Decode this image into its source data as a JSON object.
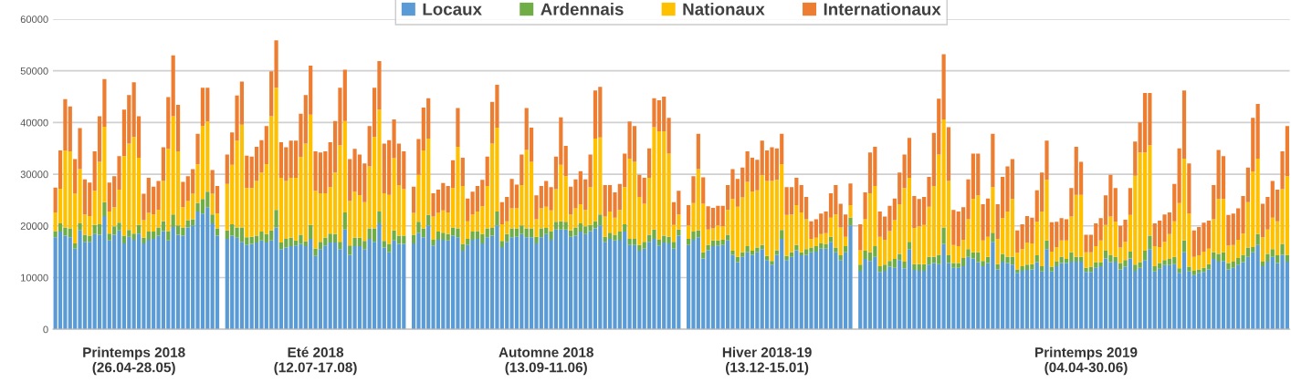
{
  "chart_data": {
    "type": "bar",
    "stacked": true,
    "grid": "y",
    "legend": "top",
    "ylim": [
      0,
      60000
    ],
    "yticks": [
      0,
      10000,
      20000,
      30000,
      40000,
      50000,
      60000
    ],
    "categories": [
      null,
      null,
      null,
      null,
      null,
      null,
      null,
      null,
      null,
      null,
      null,
      null,
      null,
      null,
      null,
      null,
      "Printemps 2018\n(26.04-28.05)",
      null,
      null,
      null,
      null,
      null,
      null,
      null,
      null,
      null,
      null,
      null,
      null,
      null,
      null,
      null,
      null,
      null,
      null,
      null,
      null,
      null,
      null,
      null,
      null,
      null,
      null,
      null,
      null,
      null,
      null,
      null,
      null,
      null,
      null,
      null,
      null,
      "Eté 2018\n(12.07-17.08)",
      null,
      null,
      null,
      null,
      null,
      null,
      null,
      null,
      null,
      null,
      null,
      null,
      null,
      null,
      null,
      null,
      null,
      null,
      null,
      null,
      null,
      null,
      null,
      null,
      null,
      null,
      null,
      null,
      null,
      null,
      null,
      null,
      null,
      null,
      null,
      null,
      null,
      null,
      null,
      null,
      null,
      null,
      null,
      null,
      null,
      null,
      "Automne 2018\n(13.09-11.06)",
      null,
      null,
      null,
      null,
      null,
      null,
      null,
      null,
      null,
      null,
      null,
      null,
      null,
      null,
      null,
      null,
      null,
      null,
      null,
      null,
      null,
      null,
      null,
      null,
      null,
      null,
      null,
      null,
      null,
      null,
      null,
      null,
      null,
      null,
      null,
      null,
      null,
      null,
      null,
      null,
      null,
      null,
      null,
      null,
      "Hiver 2018-19\n(13.12-15.01)",
      null,
      null,
      null,
      null,
      null,
      null,
      null,
      null,
      null,
      null,
      null,
      null,
      null,
      null,
      null,
      null,
      null,
      null,
      null,
      null,
      null,
      null,
      null,
      null,
      null,
      null,
      null,
      null,
      null,
      null,
      null,
      null,
      null,
      null,
      null,
      null,
      null,
      null,
      null,
      null,
      null,
      null,
      null,
      null,
      null,
      null,
      null,
      null,
      null,
      null,
      null,
      null,
      null,
      null,
      null,
      null,
      null,
      null,
      null,
      null,
      null,
      null,
      null,
      null,
      "Printemps 2019\n(04.04-30.06)",
      null,
      null,
      null,
      null,
      null,
      null,
      null,
      null,
      null,
      null,
      null,
      null,
      null,
      null,
      null,
      null,
      null,
      null,
      null,
      null,
      null,
      null,
      null,
      null,
      null,
      null,
      null,
      null,
      null,
      null,
      null,
      null,
      null,
      null,
      null,
      null,
      null,
      null,
      null,
      null,
      null
    ],
    "series": [
      {
        "name": "Locaux",
        "color": "#5b9bd5",
        "values": [
          17800,
          18900,
          18100,
          17800,
          15600,
          19100,
          16900,
          16900,
          18400,
          18300,
          21900,
          17200,
          18300,
          19100,
          16600,
          17900,
          17300,
          18500,
          16600,
          17300,
          17500,
          18100,
          19000,
          17200,
          19800,
          18300,
          18100,
          19700,
          20100,
          22800,
          22400,
          23600,
          20500,
          18100,
          null,
          17500,
          18100,
          17700,
          16900,
          16300,
          16500,
          16800,
          17200,
          16800,
          17200,
          19700,
          15500,
          15800,
          16100,
          16200,
          16500,
          16100,
          17500,
          14200,
          15500,
          16200,
          16800,
          16800,
          15500,
          19300,
          14400,
          16100,
          16100,
          15500,
          17500,
          16900,
          20500,
          15800,
          14900,
          17200,
          16500,
          16500,
          null,
          16600,
          18700,
          17800,
          20100,
          16200,
          17300,
          17300,
          17200,
          18100,
          17800,
          15200,
          16300,
          17300,
          17500,
          16600,
          17800,
          18100,
          20100,
          15900,
          16900,
          17800,
          17900,
          18400,
          17800,
          17800,
          16600,
          17800,
          18400,
          17300,
          19300,
          19300,
          19300,
          17900,
          18100,
          18900,
          18400,
          19000,
          19500,
          20100,
          16900,
          17500,
          17200,
          17300,
          18900,
          16300,
          16300,
          15200,
          15600,
          16900,
          17500,
          16200,
          16800,
          16600,
          15600,
          18100,
          null,
          16300,
          17300,
          17800,
          13700,
          15300,
          16100,
          16200,
          16300,
          17200,
          14400,
          13000,
          14000,
          14900,
          14400,
          14900,
          15500,
          13400,
          12500,
          14400,
          17500,
          13400,
          14000,
          15300,
          14300,
          14400,
          14900,
          15000,
          15600,
          15600,
          16900,
          14900,
          13400,
          14900,
          20100,
          null,
          11300,
          13600,
          13200,
          14000,
          11100,
          11300,
          12100,
          11900,
          13400,
          11800,
          15500,
          11500,
          11300,
          11300,
          12500,
          12800,
          12600,
          16500,
          12800,
          11900,
          11900,
          12200,
          14000,
          13700,
          13000,
          12200,
          12800,
          16900,
          11600,
          13100,
          12800,
          12500,
          10900,
          11300,
          11500,
          11600,
          13000,
          11200,
          15500,
          11200,
          12200,
          12800,
          12800,
          13100,
          13100,
          13100,
          11100,
          11100,
          11900,
          12200,
          13700,
          13000,
          13100,
          11600,
          12100,
          13700,
          11300,
          11900,
          13400,
          15500,
          11200,
          11700,
          12400,
          12400,
          12600,
          10900,
          14900,
          11200,
          10500,
          10900,
          11100,
          11600,
          13600,
          13100,
          13200,
          11600,
          11900,
          12500,
          13000,
          14000,
          14900,
          16300,
          12200,
          13100,
          14000,
          12800,
          14400,
          13100
        ]
      },
      {
        "name": "Ardennais",
        "color": "#70ad47",
        "values": [
          1200,
          1600,
          1600,
          1700,
          1000,
          1400,
          1400,
          1200,
          1800,
          2000,
          2700,
          1300,
          1600,
          1500,
          1500,
          1300,
          1200,
          1700,
          1100,
          1600,
          1400,
          1600,
          1900,
          1800,
          2400,
          1800,
          1600,
          1400,
          1200,
          1600,
          2800,
          3000,
          1700,
          1400,
          null,
          1600,
          2200,
          2000,
          2800,
          1500,
          1400,
          1300,
          1700,
          1600,
          1900,
          3400,
          1300,
          1700,
          1600,
          1000,
          1800,
          900,
          2700,
          1400,
          1400,
          1500,
          1700,
          1600,
          1400,
          3300,
          1800,
          1600,
          1600,
          1600,
          2000,
          2600,
          2300,
          1300,
          1600,
          1900,
          1600,
          1600,
          null,
          1700,
          2100,
          1700,
          2000,
          1100,
          1600,
          1400,
          1200,
          1600,
          1700,
          1300,
          1200,
          1600,
          1500,
          1800,
          1700,
          1500,
          2700,
          1200,
          1500,
          1700,
          1600,
          1700,
          1700,
          1700,
          1300,
          1700,
          1200,
          1700,
          1500,
          1600,
          1500,
          1200,
          1600,
          1600,
          1500,
          1200,
          1400,
          2100,
          1000,
          1200,
          1100,
          1600,
          1400,
          1200,
          1200,
          1100,
          1300,
          1400,
          1800,
          1100,
          1300,
          1300,
          1300,
          1200,
          null,
          1200,
          1600,
          1300,
          1200,
          1000,
          1100,
          1000,
          1000,
          1100,
          800,
          1000,
          900,
          1200,
          800,
          900,
          800,
          800,
          700,
          900,
          1700,
          800,
          900,
          1000,
          600,
          1100,
          900,
          1100,
          1000,
          900,
          1000,
          900,
          900,
          1200,
          1500,
          null,
          1200,
          1600,
          1700,
          2100,
          1100,
          1200,
          1100,
          1700,
          1200,
          1300,
          1400,
          1100,
          1300,
          1300,
          1500,
          1200,
          1800,
          3200,
          1500,
          900,
          900,
          1600,
          1500,
          1200,
          1900,
          1000,
          1200,
          1800,
          1000,
          1500,
          1200,
          1500,
          700,
          900,
          1000,
          1000,
          1300,
          1000,
          1700,
          900,
          900,
          1200,
          800,
          1800,
          900,
          900,
          800,
          1000,
          1100,
          800,
          1500,
          1400,
          900,
          1200,
          1300,
          1300,
          1200,
          1100,
          1800,
          2600,
          1000,
          1100,
          1000,
          1200,
          1400,
          900,
          2300,
          900,
          800,
          700,
          800,
          1000,
          1300,
          1500,
          1700,
          1200,
          1200,
          1300,
          1400,
          1800,
          1000,
          2100,
          900,
          1500,
          1500,
          1500,
          2100,
          1300
        ]
      },
      {
        "name": "Nationaux",
        "color": "#ffc000",
        "values": [
          3600,
          6700,
          14900,
          14900,
          9600,
          10500,
          3900,
          3800,
          6600,
          12100,
          14600,
          4300,
          3700,
          6400,
          15400,
          16700,
          18700,
          13000,
          3400,
          3600,
          3300,
          3400,
          7800,
          15900,
          19000,
          14300,
          3900,
          3700,
          4900,
          7500,
          14100,
          13600,
          4000,
          2900,
          null,
          9000,
          11500,
          16800,
          19900,
          9500,
          9400,
          10600,
          11400,
          13500,
          22100,
          23600,
          12500,
          11200,
          11600,
          12100,
          15000,
          18900,
          21300,
          11200,
          9400,
          8600,
          9000,
          11900,
          18700,
          17700,
          8600,
          8900,
          8200,
          7500,
          12000,
          17700,
          19700,
          9200,
          9500,
          14000,
          9800,
          9000,
          null,
          4200,
          9100,
          15100,
          14800,
          4500,
          3600,
          4300,
          4200,
          7600,
          15800,
          11200,
          3400,
          3300,
          3800,
          5400,
          8200,
          16300,
          16200,
          3200,
          2500,
          3900,
          3900,
          7800,
          15200,
          12900,
          3400,
          3900,
          4100,
          4000,
          6300,
          10900,
          8800,
          3100,
          3700,
          3700,
          3200,
          7300,
          16000,
          14900,
          3900,
          4100,
          3300,
          4200,
          7200,
          15500,
          14900,
          9300,
          7400,
          11000,
          19800,
          21000,
          20200,
          16100,
          3300,
          2900,
          null,
          2600,
          5500,
          11900,
          9400,
          3000,
          2300,
          2900,
          2600,
          4800,
          10000,
          9700,
          10600,
          12400,
          11400,
          11100,
          13500,
          14500,
          15500,
          13600,
          12700,
          7900,
          7300,
          7700,
          7700,
          5800,
          1700,
          1600,
          1800,
          2100,
          3700,
          6400,
          5400,
          1800,
          2400,
          null,
          2800,
          6100,
          11400,
          11600,
          5700,
          4800,
          5800,
          7500,
          9600,
          14200,
          12400,
          7000,
          7300,
          7600,
          9700,
          13700,
          19400,
          20900,
          14400,
          3500,
          3300,
          3500,
          5800,
          10300,
          11000,
          4000,
          3900,
          8800,
          4900,
          6900,
          8800,
          11200,
          3200,
          3300,
          4300,
          4000,
          6500,
          10600,
          11700,
          2900,
          2800,
          3200,
          3600,
          6900,
          12000,
          12000,
          3000,
          2800,
          3100,
          4200,
          5000,
          7400,
          6800,
          3000,
          3500,
          7100,
          17200,
          21200,
          19000,
          17500,
          3900,
          3100,
          3500,
          4800,
          6900,
          12600,
          15800,
          10300,
          2700,
          2700,
          3100,
          3000,
          6400,
          10600,
          10300,
          3400,
          3200,
          3500,
          4100,
          8800,
          14600,
          14600,
          4700,
          4700,
          6100,
          6600,
          10600,
          15200
        ]
      },
      {
        "name": "Internationaux",
        "color": "#ed7d31",
        "values": [
          4800,
          7400,
          9900,
          8700,
          6700,
          7900,
          6800,
          6500,
          7600,
          8800,
          9200,
          5600,
          6000,
          6500,
          9000,
          9400,
          10600,
          8000,
          5100,
          6800,
          5400,
          5600,
          6500,
          10000,
          11800,
          9000,
          4900,
          4800,
          4800,
          5900,
          7400,
          6500,
          4600,
          5300,
          null,
          5700,
          6300,
          8700,
          8300,
          6300,
          6100,
          6600,
          6300,
          7400,
          8700,
          9200,
          6900,
          6500,
          7200,
          7200,
          8400,
          9400,
          9500,
          7600,
          7900,
          8100,
          8700,
          10000,
          11100,
          9900,
          8100,
          8300,
          7900,
          7500,
          7800,
          9500,
          9400,
          9600,
          10600,
          7500,
          8000,
          7300,
          null,
          5100,
          6900,
          8300,
          7800,
          4500,
          4500,
          5300,
          5100,
          5400,
          7500,
          5500,
          4400,
          4400,
          4900,
          5100,
          5700,
          8100,
          8300,
          4300,
          4700,
          5700,
          4600,
          5900,
          8100,
          6600,
          4600,
          4300,
          5000,
          4500,
          6300,
          9200,
          5900,
          5400,
          5600,
          6400,
          5900,
          6300,
          9300,
          9800,
          6100,
          5100,
          4900,
          5000,
          6500,
          7200,
          6900,
          4300,
          5000,
          5700,
          5600,
          6000,
          6700,
          6900,
          4400,
          4600,
          null,
          3900,
          5200,
          6800,
          5100,
          4500,
          4000,
          3800,
          4000,
          4800,
          5800,
          5400,
          5800,
          5900,
          6600,
          5900,
          6700,
          5900,
          6500,
          6100,
          5900,
          5400,
          5300,
          5300,
          5300,
          4300,
          3400,
          3600,
          4000,
          4200,
          4700,
          5700,
          4600,
          4300,
          4200,
          null,
          5000,
          5200,
          7900,
          7600,
          4900,
          4500,
          4900,
          4200,
          6100,
          6500,
          7700,
          6200,
          5300,
          5400,
          5800,
          10300,
          10800,
          12600,
          10400,
          6800,
          6700,
          6300,
          7700,
          8800,
          8100,
          7000,
          7400,
          10300,
          6700,
          8000,
          8700,
          7700,
          4300,
          4800,
          5100,
          5000,
          6100,
          7500,
          7600,
          5700,
          4900,
          4300,
          4100,
          5500,
          9300,
          6400,
          3400,
          3400,
          4400,
          4300,
          5700,
          8100,
          6500,
          4200,
          4300,
          5200,
          6600,
          5800,
          11500,
          10100,
          4400,
          5100,
          5300,
          4200,
          7200,
          10600,
          13200,
          9700,
          5100,
          5500,
          5600,
          5400,
          6600,
          9500,
          8300,
          5900,
          6100,
          6100,
          7300,
          6700,
          10400,
          10600,
          6500,
          6300,
          7100,
          6100,
          7300,
          9700
        ]
      }
    ]
  }
}
